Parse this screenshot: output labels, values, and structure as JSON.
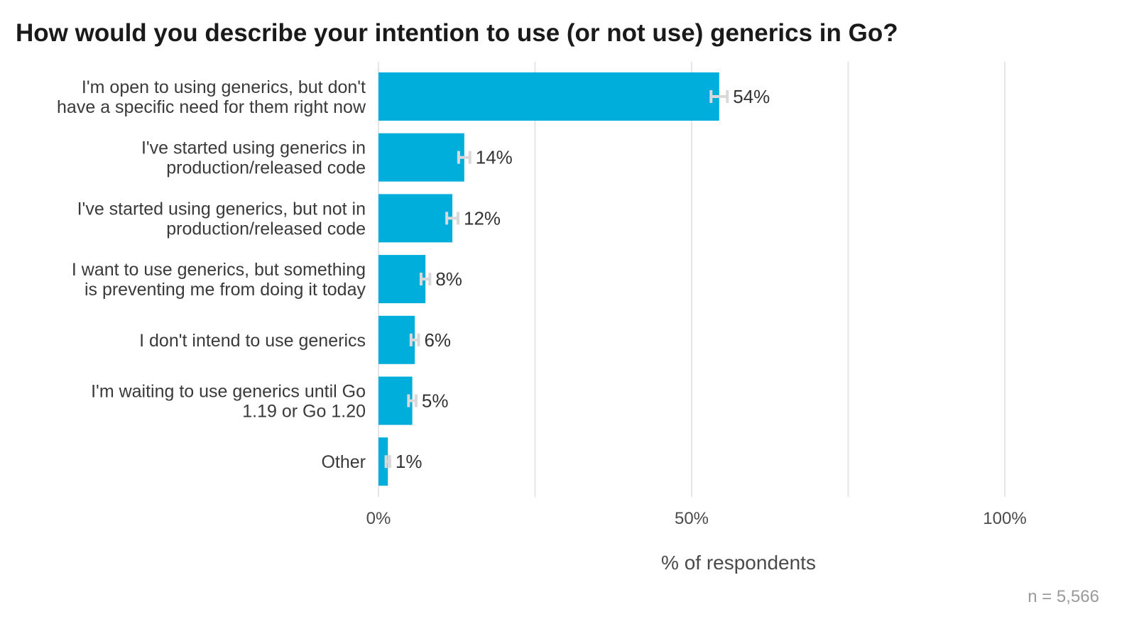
{
  "chart_data": {
    "type": "bar",
    "orientation": "horizontal",
    "title": "How would you describe your intention to use (or not use) generics in Go?",
    "categories": [
      [
        "I'm open to using generics, but don't",
        "have a specific need for them right now"
      ],
      [
        "I've started using generics in",
        "production/released code"
      ],
      [
        "I've started using generics, but not in",
        "production/released code"
      ],
      [
        "I want to use generics, but something",
        "is preventing me from doing it today"
      ],
      [
        "I don't intend to use generics"
      ],
      [
        "I'm waiting to use generics until Go",
        "1.19 or Go 1.20"
      ],
      [
        "Other"
      ]
    ],
    "values": [
      54.4,
      13.7,
      11.8,
      7.5,
      5.8,
      5.4,
      1.5
    ],
    "error_margin": [
      1.3,
      0.9,
      0.9,
      0.7,
      0.6,
      0.6,
      0.3
    ],
    "data_labels": [
      "54%",
      "14%",
      "12%",
      "8%",
      "6%",
      "5%",
      "1%"
    ],
    "xlabel": "% of respondents",
    "xlim": [
      0,
      100
    ],
    "x_ticks": [
      {
        "value": 0,
        "label": "0%"
      },
      {
        "value": 50,
        "label": "50%"
      },
      {
        "value": 100,
        "label": "100%"
      }
    ],
    "grid_values": [
      0,
      25,
      50,
      75,
      100
    ],
    "grid": true,
    "note": "n =  5,566",
    "colors": {
      "bar": "#00aedb",
      "error_bar": "#d9d9d9",
      "grid": "#e6e6e6"
    }
  }
}
